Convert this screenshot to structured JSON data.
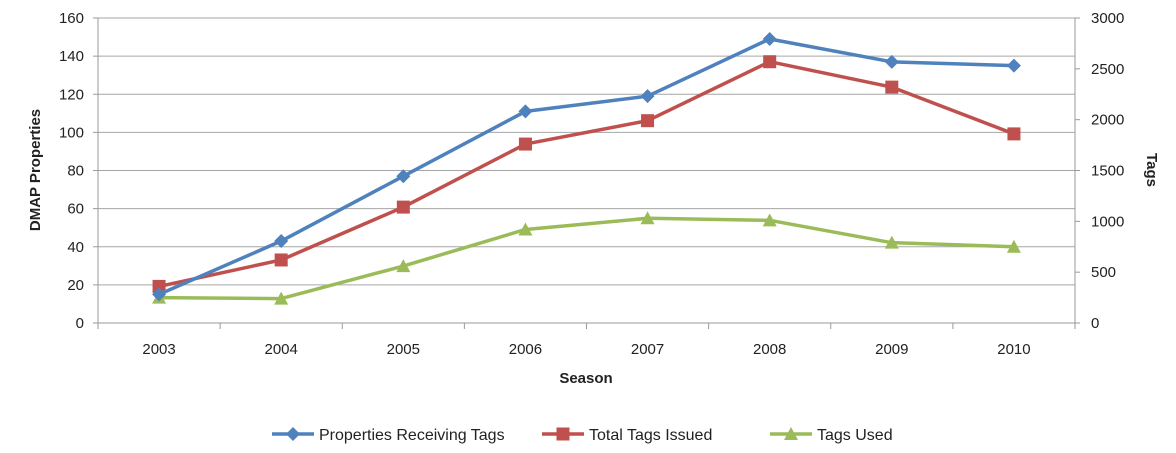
{
  "chart_data": {
    "type": "line",
    "xlabel": "Season",
    "ylabel": "DMAP Properties",
    "y2label": "Tags",
    "categories": [
      "2003",
      "2004",
      "2005",
      "2006",
      "2007",
      "2008",
      "2009",
      "2010"
    ],
    "ylim": [
      0,
      160
    ],
    "y2lim": [
      0,
      3000
    ],
    "yticks": [
      "0",
      "20",
      "40",
      "60",
      "80",
      "100",
      "120",
      "140",
      "160"
    ],
    "y2ticks": [
      "0",
      "500",
      "1000",
      "1500",
      "2000",
      "2500",
      "3000"
    ],
    "grid": true,
    "legend_position": "bottom",
    "series": [
      {
        "name": "Properties Receiving Tags",
        "axis": "left",
        "marker": "diamond",
        "color": "#4f81bd",
        "values": [
          15,
          43,
          77,
          111,
          119,
          149,
          137,
          135
        ]
      },
      {
        "name": "Total Tags Issued",
        "axis": "right",
        "marker": "square",
        "color": "#c0504d",
        "values": [
          360,
          620,
          1140,
          1760,
          1990,
          2570,
          2320,
          1860
        ]
      },
      {
        "name": "Tags Used",
        "axis": "right",
        "marker": "triangle",
        "color": "#9bbb59",
        "values": [
          250,
          240,
          560,
          920,
          1030,
          1010,
          790,
          750
        ]
      }
    ]
  }
}
